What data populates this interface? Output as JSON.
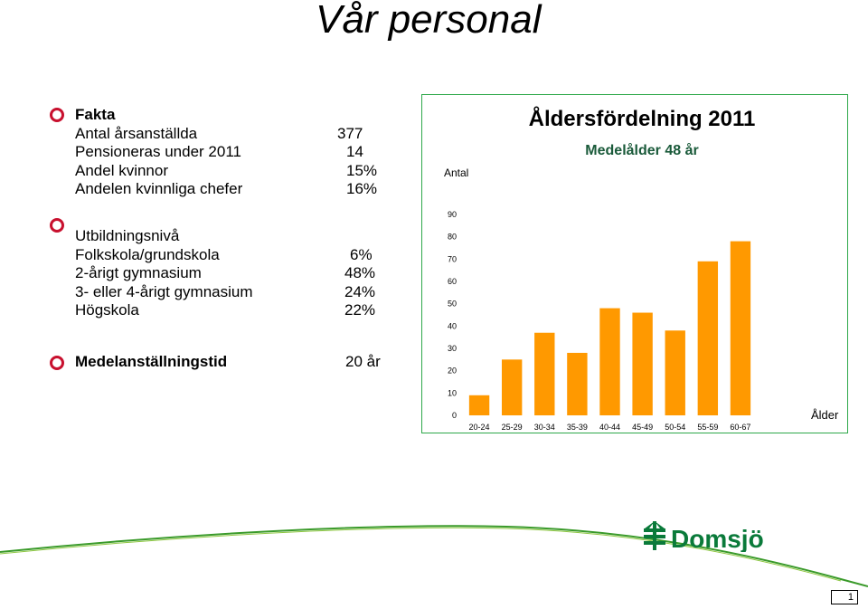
{
  "title": "Vår personal",
  "facts": {
    "heading": "Fakta",
    "rows": [
      {
        "label": "Antal årsanställda",
        "value": "377"
      },
      {
        "label": "Pensioneras under 2011",
        "value": "14"
      },
      {
        "label": "Andel kvinnor",
        "value": "15%"
      },
      {
        "label": "Andelen kvinnliga chefer",
        "value": "16%"
      }
    ]
  },
  "education": {
    "heading": "Utbildningsnivå",
    "rows": [
      {
        "label": "Folkskola/grundskola",
        "value": "6%"
      },
      {
        "label": "2-årigt gymnasium",
        "value": "48%"
      },
      {
        "label": "3- eller 4-årigt gymnasium",
        "value": "24%"
      },
      {
        "label": "Högskola",
        "value": "22%"
      }
    ]
  },
  "tenure": {
    "label": "Medelanställningstid",
    "value": "20 år"
  },
  "chart_data": {
    "type": "bar",
    "title": "Åldersfördelning 2011",
    "subtitle": "Medelålder 48 år",
    "ylabel": "Antal",
    "xlabel": "Ålder",
    "categories": [
      "20-24",
      "25-29",
      "30-34",
      "35-39",
      "40-44",
      "45-49",
      "50-54",
      "55-59",
      "60-67"
    ],
    "values": [
      9,
      25,
      37,
      28,
      48,
      46,
      38,
      69,
      78
    ],
    "ylim": [
      0,
      90
    ],
    "yticks": [
      0,
      10,
      20,
      30,
      40,
      50,
      60,
      70,
      80,
      90
    ],
    "bar_color": "#ff9900",
    "grid": false
  },
  "logo": {
    "text": "Domsjö",
    "color": "#0a7a3a"
  },
  "page_number": "1",
  "colors": {
    "bullet": "#c8102e",
    "frame": "#2ea84a",
    "footer": "#3a9a2a"
  }
}
